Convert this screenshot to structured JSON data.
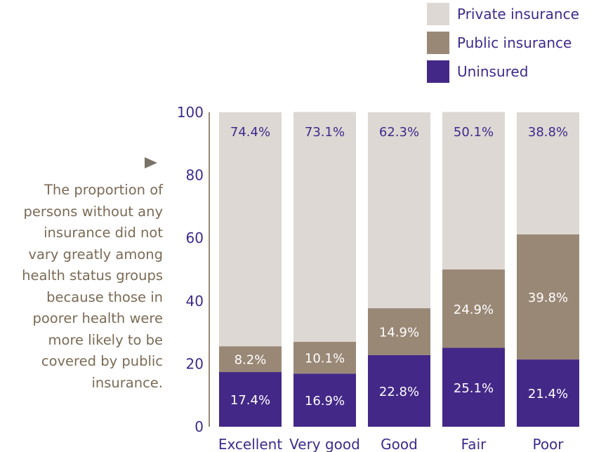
{
  "annotation": {
    "lines": [
      "The proportion of",
      "persons without any",
      "insurance did not",
      "vary greatly among",
      "health status groups",
      "because those in",
      "poorer health were",
      "more likely to be",
      "covered by public",
      "insurance."
    ]
  },
  "colors": {
    "private": "#ddd8d3",
    "public": "#9a8876",
    "uninsured": "#432887",
    "text_dark": "#3f2a8c",
    "text_light": "#ffffff"
  },
  "chart_data": {
    "type": "bar",
    "stacked": true,
    "categories": [
      "Excellent",
      "Very good",
      "Good",
      "Fair",
      "Poor"
    ],
    "series": [
      {
        "name": "Uninsured",
        "values": [
          17.4,
          16.9,
          22.8,
          25.1,
          21.4
        ],
        "labels": [
          "17.4%",
          "16.9%",
          "22.8%",
          "25.1%",
          "21.4%"
        ]
      },
      {
        "name": "Public insurance",
        "values": [
          8.2,
          10.1,
          14.9,
          24.9,
          39.8
        ],
        "labels": [
          "8.2%",
          "10.1%",
          "14.9%",
          "24.9%",
          "39.8%"
        ]
      },
      {
        "name": "Private insurance",
        "values": [
          74.4,
          73.1,
          62.3,
          50.1,
          38.8
        ],
        "labels": [
          "74.4%",
          "73.1%",
          "62.3%",
          "50.1%",
          "38.8%"
        ]
      }
    ],
    "yticks": [
      "0",
      "20",
      "40",
      "60",
      "80",
      "100"
    ],
    "ylim": [
      0,
      100
    ],
    "legend": [
      "Private insurance",
      "Public insurance",
      "Uninsured"
    ],
    "legend_position": "top-right",
    "grid": false
  }
}
